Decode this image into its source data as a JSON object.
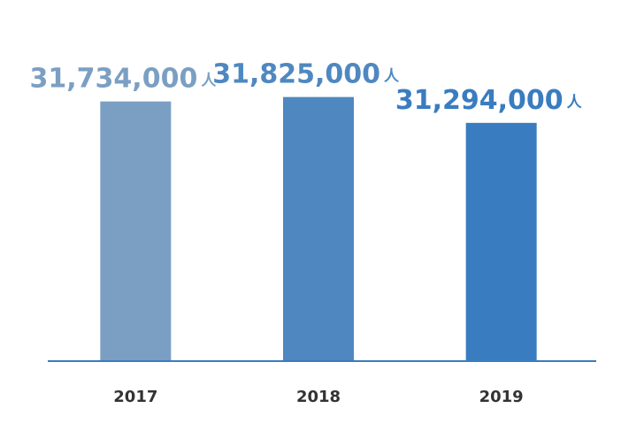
{
  "chart_data": {
    "type": "bar",
    "categories": [
      "2017",
      "2018",
      "2019"
    ],
    "values": [
      31734000,
      31825000,
      31294000
    ],
    "value_labels": [
      "31,734,000",
      "31,825,000",
      "31,294,000"
    ],
    "unit": "人",
    "colors": [
      "#7b9fc3",
      "#4f88c0",
      "#3a7cc0"
    ],
    "ylim": [
      26400000,
      32000000
    ]
  }
}
